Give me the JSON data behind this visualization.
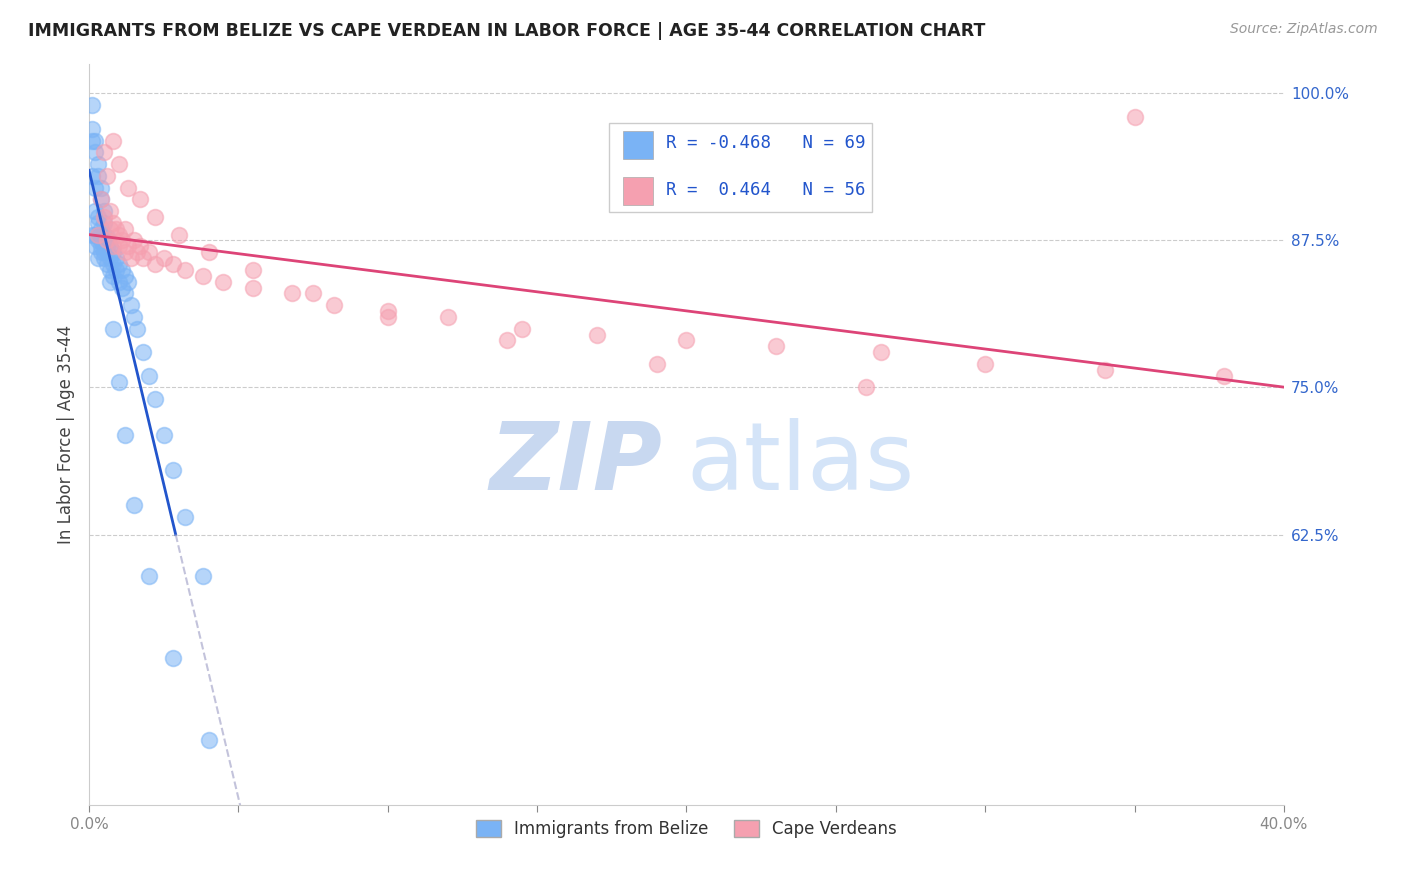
{
  "title": "IMMIGRANTS FROM BELIZE VS CAPE VERDEAN IN LABOR FORCE | AGE 35-44 CORRELATION CHART",
  "source": "Source: ZipAtlas.com",
  "ylabel": "In Labor Force | Age 35-44",
  "legend_belize": "Immigrants from Belize",
  "legend_cape": "Cape Verdeans",
  "r_belize": -0.468,
  "n_belize": 69,
  "r_cape": 0.464,
  "n_cape": 56,
  "xmin": 0.0,
  "xmax": 0.4,
  "ymin": 0.395,
  "ymax": 1.025,
  "yticks": [
    0.625,
    0.75,
    0.875,
    1.0
  ],
  "ytick_labels": [
    "62.5%",
    "75.0%",
    "87.5%",
    "100.0%"
  ],
  "xticks": [
    0.0,
    0.05,
    0.1,
    0.15,
    0.2,
    0.25,
    0.3,
    0.35,
    0.4
  ],
  "xtick_labels": [
    "0.0%",
    "",
    "",
    "",
    "",
    "",
    "",
    "",
    "40.0%"
  ],
  "color_belize": "#7ab3f5",
  "color_cape": "#f5a0b0",
  "trendline_belize": "#2255cc",
  "trendline_cape": "#dd4477",
  "watermark_zip": "ZIP",
  "watermark_atlas": "atlas",
  "belize_x": [
    0.001,
    0.001,
    0.001,
    0.002,
    0.002,
    0.002,
    0.002,
    0.003,
    0.003,
    0.003,
    0.003,
    0.003,
    0.004,
    0.004,
    0.004,
    0.004,
    0.005,
    0.005,
    0.005,
    0.005,
    0.005,
    0.006,
    0.006,
    0.006,
    0.006,
    0.007,
    0.007,
    0.007,
    0.008,
    0.008,
    0.008,
    0.009,
    0.009,
    0.01,
    0.01,
    0.011,
    0.011,
    0.012,
    0.012,
    0.013,
    0.014,
    0.015,
    0.016,
    0.018,
    0.02,
    0.022,
    0.025,
    0.028,
    0.032,
    0.038,
    0.001,
    0.001,
    0.002,
    0.002,
    0.003,
    0.003,
    0.004,
    0.004,
    0.005,
    0.005,
    0.006,
    0.007,
    0.008,
    0.01,
    0.012,
    0.015,
    0.02,
    0.028,
    0.04
  ],
  "belize_y": [
    0.93,
    0.96,
    0.88,
    0.9,
    0.92,
    0.88,
    0.87,
    0.895,
    0.875,
    0.89,
    0.86,
    0.88,
    0.885,
    0.875,
    0.865,
    0.87,
    0.88,
    0.875,
    0.865,
    0.87,
    0.86,
    0.875,
    0.865,
    0.878,
    0.855,
    0.87,
    0.86,
    0.85,
    0.865,
    0.855,
    0.845,
    0.86,
    0.85,
    0.855,
    0.84,
    0.85,
    0.835,
    0.845,
    0.83,
    0.84,
    0.82,
    0.81,
    0.8,
    0.78,
    0.76,
    0.74,
    0.71,
    0.68,
    0.64,
    0.59,
    0.97,
    0.99,
    0.96,
    0.95,
    0.94,
    0.93,
    0.92,
    0.91,
    0.9,
    0.89,
    0.87,
    0.84,
    0.8,
    0.755,
    0.71,
    0.65,
    0.59,
    0.52,
    0.45
  ],
  "cape_x": [
    0.003,
    0.004,
    0.005,
    0.006,
    0.007,
    0.007,
    0.008,
    0.008,
    0.009,
    0.01,
    0.01,
    0.011,
    0.012,
    0.012,
    0.013,
    0.014,
    0.015,
    0.016,
    0.017,
    0.018,
    0.02,
    0.022,
    0.025,
    0.028,
    0.032,
    0.038,
    0.045,
    0.055,
    0.068,
    0.082,
    0.1,
    0.12,
    0.145,
    0.17,
    0.2,
    0.23,
    0.265,
    0.3,
    0.34,
    0.38,
    0.005,
    0.006,
    0.008,
    0.01,
    0.013,
    0.017,
    0.022,
    0.03,
    0.04,
    0.055,
    0.075,
    0.1,
    0.14,
    0.19,
    0.26,
    0.35
  ],
  "cape_y": [
    0.88,
    0.91,
    0.895,
    0.875,
    0.9,
    0.885,
    0.89,
    0.87,
    0.885,
    0.88,
    0.87,
    0.875,
    0.865,
    0.885,
    0.87,
    0.86,
    0.875,
    0.865,
    0.87,
    0.86,
    0.865,
    0.855,
    0.86,
    0.855,
    0.85,
    0.845,
    0.84,
    0.835,
    0.83,
    0.82,
    0.815,
    0.81,
    0.8,
    0.795,
    0.79,
    0.785,
    0.78,
    0.77,
    0.765,
    0.76,
    0.95,
    0.93,
    0.96,
    0.94,
    0.92,
    0.91,
    0.895,
    0.88,
    0.865,
    0.85,
    0.83,
    0.81,
    0.79,
    0.77,
    0.75,
    0.98
  ]
}
